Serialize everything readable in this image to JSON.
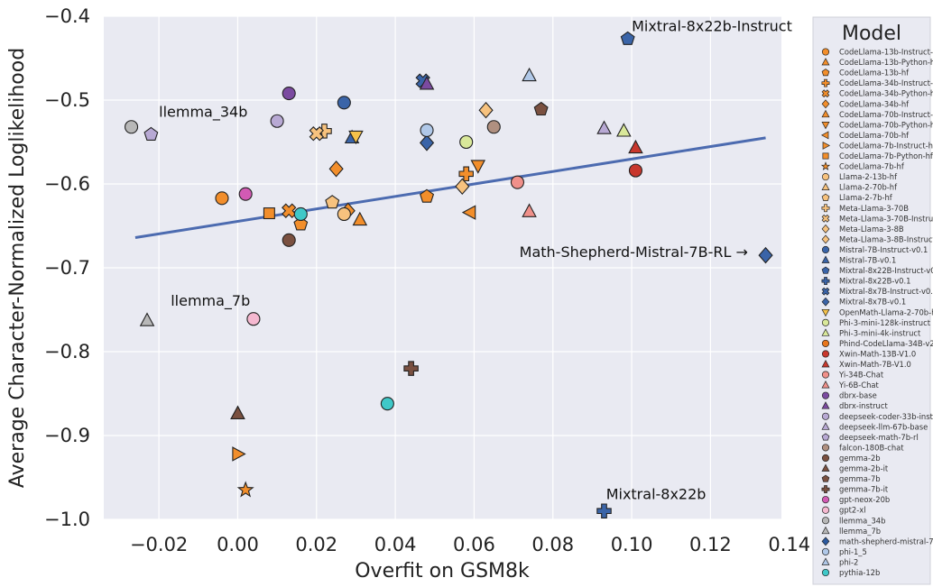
{
  "chart_data": {
    "type": "scatter",
    "xlabel": "Overfit on GSM8k",
    "ylabel": "Average Character-Normalized Loglikelihood",
    "xlim": [
      -0.034,
      0.138
    ],
    "ylim": [
      -1.0,
      -0.4
    ],
    "xticks": [
      -0.02,
      0.0,
      0.02,
      0.04,
      0.06,
      0.08,
      0.1,
      0.12,
      0.14
    ],
    "xtick_labels": [
      "−0.02",
      "0.00",
      "0.02",
      "0.04",
      "0.06",
      "0.08",
      "0.10",
      "0.12",
      "0.14"
    ],
    "yticks": [
      -1.0,
      -0.9,
      -0.8,
      -0.7,
      -0.6,
      -0.5,
      -0.4
    ],
    "ytick_labels": [
      "−1.0",
      "−0.9",
      "−0.8",
      "−0.7",
      "−0.6",
      "−0.5",
      "−0.4"
    ],
    "grid": true,
    "legend": {
      "title": "Model",
      "placement": "right-outside"
    },
    "trendline": {
      "x": [
        -0.026,
        0.134
      ],
      "y": [
        -0.664,
        -0.545
      ],
      "color": "#4c6bb0"
    },
    "annotations": [
      {
        "text": "Mixtral-8x22b-Instruct",
        "x": 0.1,
        "y": -0.418
      },
      {
        "text": "llemma_34b",
        "x": -0.02,
        "y": -0.52
      },
      {
        "text": "Math-Shepherd-Mistral-7B-RL →",
        "x": 0.0715,
        "y": -0.687
      },
      {
        "text": "llemma_7b",
        "x": -0.017,
        "y": -0.745
      },
      {
        "text": "Mixtral-8x22b",
        "x": 0.0935,
        "y": -0.976
      }
    ],
    "series": [
      {
        "name": "CodeLlama-13b-Instruct-hf",
        "marker": "circle",
        "color": "#f28e2b",
        "x": [
          -0.004
        ],
        "y": [
          -0.617
        ]
      },
      {
        "name": "CodeLlama-13b-Python-hf",
        "marker": "triangle",
        "color": "#f28e2b",
        "x": [
          0.031
        ],
        "y": [
          -0.643
        ]
      },
      {
        "name": "CodeLlama-13b-hf",
        "marker": "pentagon",
        "color": "#f28e2b",
        "x": [
          0.016,
          0.048
        ],
        "y": [
          -0.648,
          -0.615
        ]
      },
      {
        "name": "CodeLlama-34b-Instruct-hf",
        "marker": "plus",
        "color": "#f28e2b",
        "x": [
          0.058
        ],
        "y": [
          -0.588
        ]
      },
      {
        "name": "CodeLlama-34b-Python-hf",
        "marker": "x",
        "color": "#f28e2b",
        "x": [
          0.013
        ],
        "y": [
          -0.632
        ]
      },
      {
        "name": "CodeLlama-34b-hf",
        "marker": "diamond",
        "color": "#f28e2b",
        "x": [
          0.025,
          0.028
        ],
        "y": [
          -0.582,
          -0.632
        ]
      },
      {
        "name": "CodeLlama-70b-Instruct-hf",
        "marker": "triangle",
        "color": "#f28e2b",
        "x": [
          0.0
        ],
        "y": [
          -0.874
        ]
      },
      {
        "name": "CodeLlama-70b-Python-hf",
        "marker": "triangle-down",
        "color": "#f28e2b",
        "x": [
          0.061
        ],
        "y": [
          -0.578
        ]
      },
      {
        "name": "CodeLlama-70b-hf",
        "marker": "triangle-left",
        "color": "#f28e2b",
        "x": [
          0.059
        ],
        "y": [
          -0.634
        ]
      },
      {
        "name": "CodeLlama-7b-Instruct-hf",
        "marker": "triangle-right",
        "color": "#f28e2b",
        "x": [
          0.0
        ],
        "y": [
          -0.922
        ]
      },
      {
        "name": "CodeLlama-7b-Python-hf",
        "marker": "square",
        "color": "#f28e2b",
        "x": [
          0.008
        ],
        "y": [
          -0.635
        ]
      },
      {
        "name": "CodeLlama-7b-hf",
        "marker": "star",
        "color": "#f28e2b",
        "x": [
          0.002
        ],
        "y": [
          -0.965
        ]
      },
      {
        "name": "Llama-2-13b-hf",
        "marker": "circle",
        "color": "#f7c27e",
        "x": [
          0.027
        ],
        "y": [
          -0.636
        ]
      },
      {
        "name": "Llama-2-70b-hf",
        "marker": "triangle",
        "color": "#f7c27e",
        "x": [],
        "y": []
      },
      {
        "name": "Llama-2-7b-hf",
        "marker": "pentagon",
        "color": "#f7c27e",
        "x": [
          0.024
        ],
        "y": [
          -0.622
        ]
      },
      {
        "name": "Meta-Llama-3-70B",
        "marker": "plus",
        "color": "#f7c27e",
        "x": [
          0.022
        ],
        "y": [
          -0.537
        ]
      },
      {
        "name": "Meta-Llama-3-70B-Instruct",
        "marker": "x",
        "color": "#f7c27e",
        "x": [
          0.02
        ],
        "y": [
          -0.54
        ]
      },
      {
        "name": "Meta-Llama-3-8B",
        "marker": "diamond",
        "color": "#f7c27e",
        "x": [
          0.063
        ],
        "y": [
          -0.512
        ]
      },
      {
        "name": "Meta-Llama-3-8B-Instruct",
        "marker": "diamond",
        "color": "#f7c27e",
        "x": [
          0.057
        ],
        "y": [
          -0.603
        ]
      },
      {
        "name": "Mistral-7B-Instruct-v0.1",
        "marker": "circle",
        "color": "#3a64a8",
        "x": [
          0.027
        ],
        "y": [
          -0.503
        ]
      },
      {
        "name": "Mistral-7B-v0.1",
        "marker": "triangle",
        "color": "#3a64a8",
        "x": [
          0.029
        ],
        "y": [
          -0.545
        ]
      },
      {
        "name": "Mixtral-8x22B-Instruct-v0.1",
        "marker": "pentagon",
        "color": "#3a64a8",
        "x": [
          0.099
        ],
        "y": [
          -0.427
        ]
      },
      {
        "name": "Mixtral-8x22B-v0.1",
        "marker": "plus",
        "color": "#3a64a8",
        "x": [
          0.093
        ],
        "y": [
          -0.99
        ]
      },
      {
        "name": "Mixtral-8x7B-Instruct-v0.1",
        "marker": "x",
        "color": "#3a64a8",
        "x": [
          0.047
        ],
        "y": [
          -0.477
        ]
      },
      {
        "name": "Mixtral-8x7B-v0.1",
        "marker": "diamond",
        "color": "#3a64a8",
        "x": [
          0.048,
          0.134
        ],
        "y": [
          -0.551,
          -0.685
        ]
      },
      {
        "name": "OpenMath-Llama-2-70b-hf",
        "marker": "triangle-down",
        "color": "#f5c24a",
        "x": [
          0.03
        ],
        "y": [
          -0.543
        ]
      },
      {
        "name": "Phi-3-mini-128k-instruct",
        "marker": "circle",
        "color": "#d9e89a",
        "x": [
          0.058
        ],
        "y": [
          -0.55
        ]
      },
      {
        "name": "Phi-3-mini-4k-instruct",
        "marker": "triangle",
        "color": "#d9e89a",
        "x": [
          0.098
        ],
        "y": [
          -0.537
        ]
      },
      {
        "name": "Phind-CodeLlama-34B-v2",
        "marker": "circle",
        "color": "#e8761c",
        "x": [],
        "y": []
      },
      {
        "name": "Xwin-Math-13B-V1.0",
        "marker": "circle",
        "color": "#c8372d",
        "x": [
          0.101
        ],
        "y": [
          -0.584
        ]
      },
      {
        "name": "Xwin-Math-7B-V1.0",
        "marker": "triangle",
        "color": "#c8372d",
        "x": [
          0.101
        ],
        "y": [
          -0.557
        ]
      },
      {
        "name": "Yi-34B-Chat",
        "marker": "circle",
        "color": "#f0908a",
        "x": [
          0.071
        ],
        "y": [
          -0.598
        ]
      },
      {
        "name": "Yi-6B-Chat",
        "marker": "triangle",
        "color": "#f0908a",
        "x": [
          0.074
        ],
        "y": [
          -0.633
        ]
      },
      {
        "name": "dbrx-base",
        "marker": "circle",
        "color": "#7b4aa0",
        "x": [
          0.013
        ],
        "y": [
          -0.492
        ]
      },
      {
        "name": "dbrx-instruct",
        "marker": "triangle",
        "color": "#7b4aa0",
        "x": [
          0.048
        ],
        "y": [
          -0.481
        ]
      },
      {
        "name": "deepseek-coder-33b-instruct",
        "marker": "circle",
        "color": "#b8a9d4",
        "x": [
          0.01
        ],
        "y": [
          -0.525
        ]
      },
      {
        "name": "deepseek-llm-67b-base",
        "marker": "triangle",
        "color": "#b8a9d4",
        "x": [
          0.093
        ],
        "y": [
          -0.534
        ]
      },
      {
        "name": "deepseek-math-7b-rl",
        "marker": "pentagon",
        "color": "#b8a9d4",
        "x": [
          -0.022
        ],
        "y": [
          -0.541
        ]
      },
      {
        "name": "falcon-180B-chat",
        "marker": "circle",
        "color": "#b09080",
        "x": [
          0.065
        ],
        "y": [
          -0.532
        ]
      },
      {
        "name": "gemma-2b",
        "marker": "circle",
        "color": "#7a5040",
        "x": [
          0.013
        ],
        "y": [
          -0.667
        ]
      },
      {
        "name": "gemma-2b-it",
        "marker": "triangle",
        "color": "#7a5040",
        "x": [
          0.0
        ],
        "y": [
          -0.874
        ]
      },
      {
        "name": "gemma-7b",
        "marker": "pentagon",
        "color": "#7a5040",
        "x": [
          0.077
        ],
        "y": [
          -0.511
        ]
      },
      {
        "name": "gemma-7b-it",
        "marker": "plus",
        "color": "#7a5040",
        "x": [
          0.044
        ],
        "y": [
          -0.82
        ]
      },
      {
        "name": "gpt-neox-20b",
        "marker": "circle",
        "color": "#d25ab4",
        "x": [
          0.002
        ],
        "y": [
          -0.612
        ]
      },
      {
        "name": "gpt2-xl",
        "marker": "circle",
        "color": "#f5b8d0",
        "x": [
          0.004
        ],
        "y": [
          -0.761
        ]
      },
      {
        "name": "llemma_34b",
        "marker": "circle",
        "color": "#b8b8b8",
        "x": [
          -0.027
        ],
        "y": [
          -0.532
        ]
      },
      {
        "name": "llemma_7b",
        "marker": "triangle",
        "color": "#b8b8b8",
        "x": [
          -0.023
        ],
        "y": [
          -0.763
        ]
      },
      {
        "name": "math-shepherd-mistral-7b-rl",
        "marker": "diamond",
        "color": "#2c5aa0",
        "x": [],
        "y": []
      },
      {
        "name": "phi-1_5",
        "marker": "circle",
        "color": "#b0c8e8",
        "x": [
          0.048
        ],
        "y": [
          -0.536
        ]
      },
      {
        "name": "phi-2",
        "marker": "triangle",
        "color": "#b0c8e8",
        "x": [
          0.074
        ],
        "y": [
          -0.471
        ]
      },
      {
        "name": "pythia-12b",
        "marker": "circle",
        "color": "#3fc8c8",
        "x": [
          0.038,
          0.016
        ],
        "y": [
          -0.862,
          -0.636
        ]
      }
    ]
  }
}
